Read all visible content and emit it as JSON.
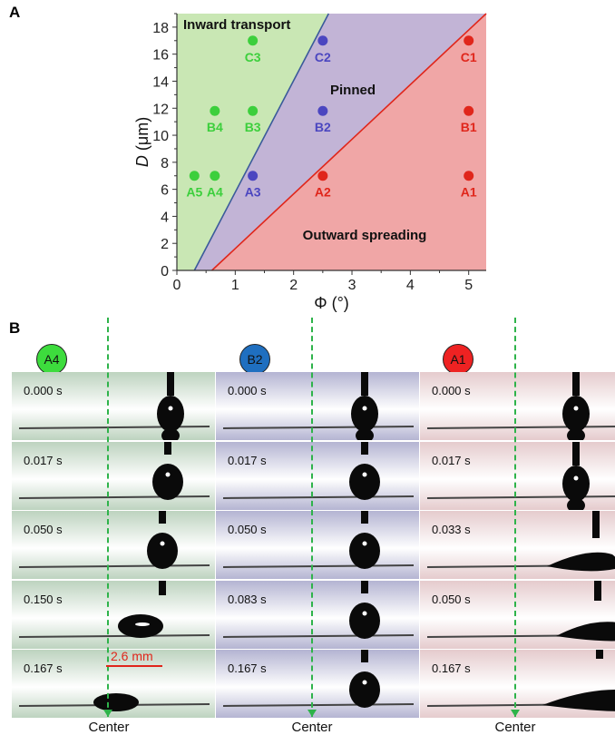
{
  "panel_a_label": "A",
  "panel_b_label": "B",
  "chart_data": {
    "type": "scatter",
    "xlabel": "Φ (°)",
    "ylabel_var": "D",
    "ylabel_unit": " (μm)",
    "xlim": [
      0,
      5.3
    ],
    "ylim": [
      0,
      19
    ],
    "xticks": [
      0,
      1,
      2,
      3,
      4,
      5
    ],
    "yticks": [
      0,
      2,
      4,
      6,
      8,
      10,
      12,
      14,
      16,
      18
    ],
    "regions": [
      {
        "label": "Inward transport",
        "color": "#c9e7b4"
      },
      {
        "label": "Pinned",
        "color": "#c2b4d6"
      },
      {
        "label": "Outward spreading",
        "color": "#f0a6a6"
      }
    ],
    "boundaries": [
      {
        "color": "#3a5a9a",
        "x": [
          0.3,
          2.6
        ],
        "y": [
          0,
          19
        ]
      },
      {
        "color": "#e0261b",
        "x": [
          0.6,
          5.3
        ],
        "y": [
          0,
          19
        ]
      }
    ],
    "points": [
      {
        "label": "A5",
        "x": 0.3,
        "y": 7,
        "color": "#3ccf3c"
      },
      {
        "label": "A4",
        "x": 0.65,
        "y": 7,
        "color": "#3ccf3c"
      },
      {
        "label": "B4",
        "x": 0.65,
        "y": 11.8,
        "color": "#3ccf3c"
      },
      {
        "label": "B3",
        "x": 1.3,
        "y": 11.8,
        "color": "#3ccf3c"
      },
      {
        "label": "C3",
        "x": 1.3,
        "y": 17,
        "color": "#3ccf3c"
      },
      {
        "label": "A3",
        "x": 1.3,
        "y": 7,
        "color": "#4b46c0"
      },
      {
        "label": "B2",
        "x": 2.5,
        "y": 11.8,
        "color": "#4b46c0"
      },
      {
        "label": "C2",
        "x": 2.5,
        "y": 17,
        "color": "#4b46c0"
      },
      {
        "label": "A2",
        "x": 2.5,
        "y": 7,
        "color": "#e0261b"
      },
      {
        "label": "A1",
        "x": 5,
        "y": 7,
        "color": "#e0261b"
      },
      {
        "label": "B1",
        "x": 5,
        "y": 11.8,
        "color": "#e0261b"
      },
      {
        "label": "C1",
        "x": 5,
        "y": 17,
        "color": "#e0261b"
      }
    ]
  },
  "columns": [
    {
      "badge": "A4",
      "badge_color": "#3ddc3d",
      "bg": "#bdd3bf",
      "times": [
        "0.000 s",
        "0.017 s",
        "0.050 s",
        "0.150 s",
        "0.167 s"
      ],
      "center": "Center"
    },
    {
      "badge": "B2",
      "badge_color": "#1f6fc0",
      "bg": "#b4b4d2",
      "times": [
        "0.000 s",
        "0.017 s",
        "0.050 s",
        "0.083 s",
        "0.167 s"
      ],
      "center": "Center"
    },
    {
      "badge": "A1",
      "badge_color": "#ee2222",
      "bg": "#e5cbcd",
      "times": [
        "0.000 s",
        "0.017 s",
        "0.033 s",
        "0.050 s",
        "0.167 s"
      ],
      "center": "Center"
    }
  ],
  "scale_bar": "2.6 mm"
}
